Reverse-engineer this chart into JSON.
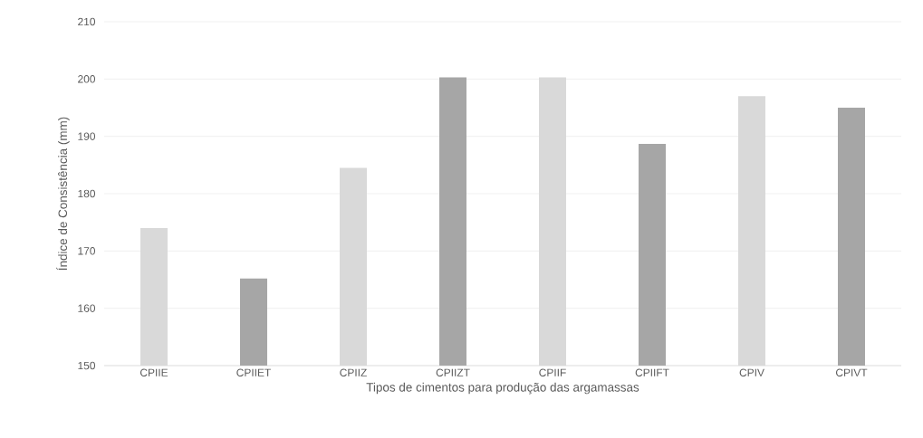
{
  "chart_data": {
    "type": "bar",
    "xlabel": "Tipos de cimentos para produção das argamassas",
    "ylabel": "Índice de Consistência (mm)",
    "categories": [
      "CPIIE",
      "CPIIET",
      "CPIIZ",
      "CPIIZT",
      "CPIIF",
      "CPIIFT",
      "CPIV",
      "CPIVT"
    ],
    "values": [
      174,
      165.2,
      184.5,
      200.3,
      200.3,
      188.7,
      197,
      195
    ],
    "colors": [
      "#d9d9d9",
      "#a6a6a6",
      "#d9d9d9",
      "#a6a6a6",
      "#d9d9d9",
      "#a6a6a6",
      "#d9d9d9",
      "#a6a6a6"
    ],
    "ylim": [
      150,
      210
    ],
    "yticks": [
      150,
      160,
      170,
      180,
      190,
      200,
      210
    ],
    "grid": "y"
  }
}
